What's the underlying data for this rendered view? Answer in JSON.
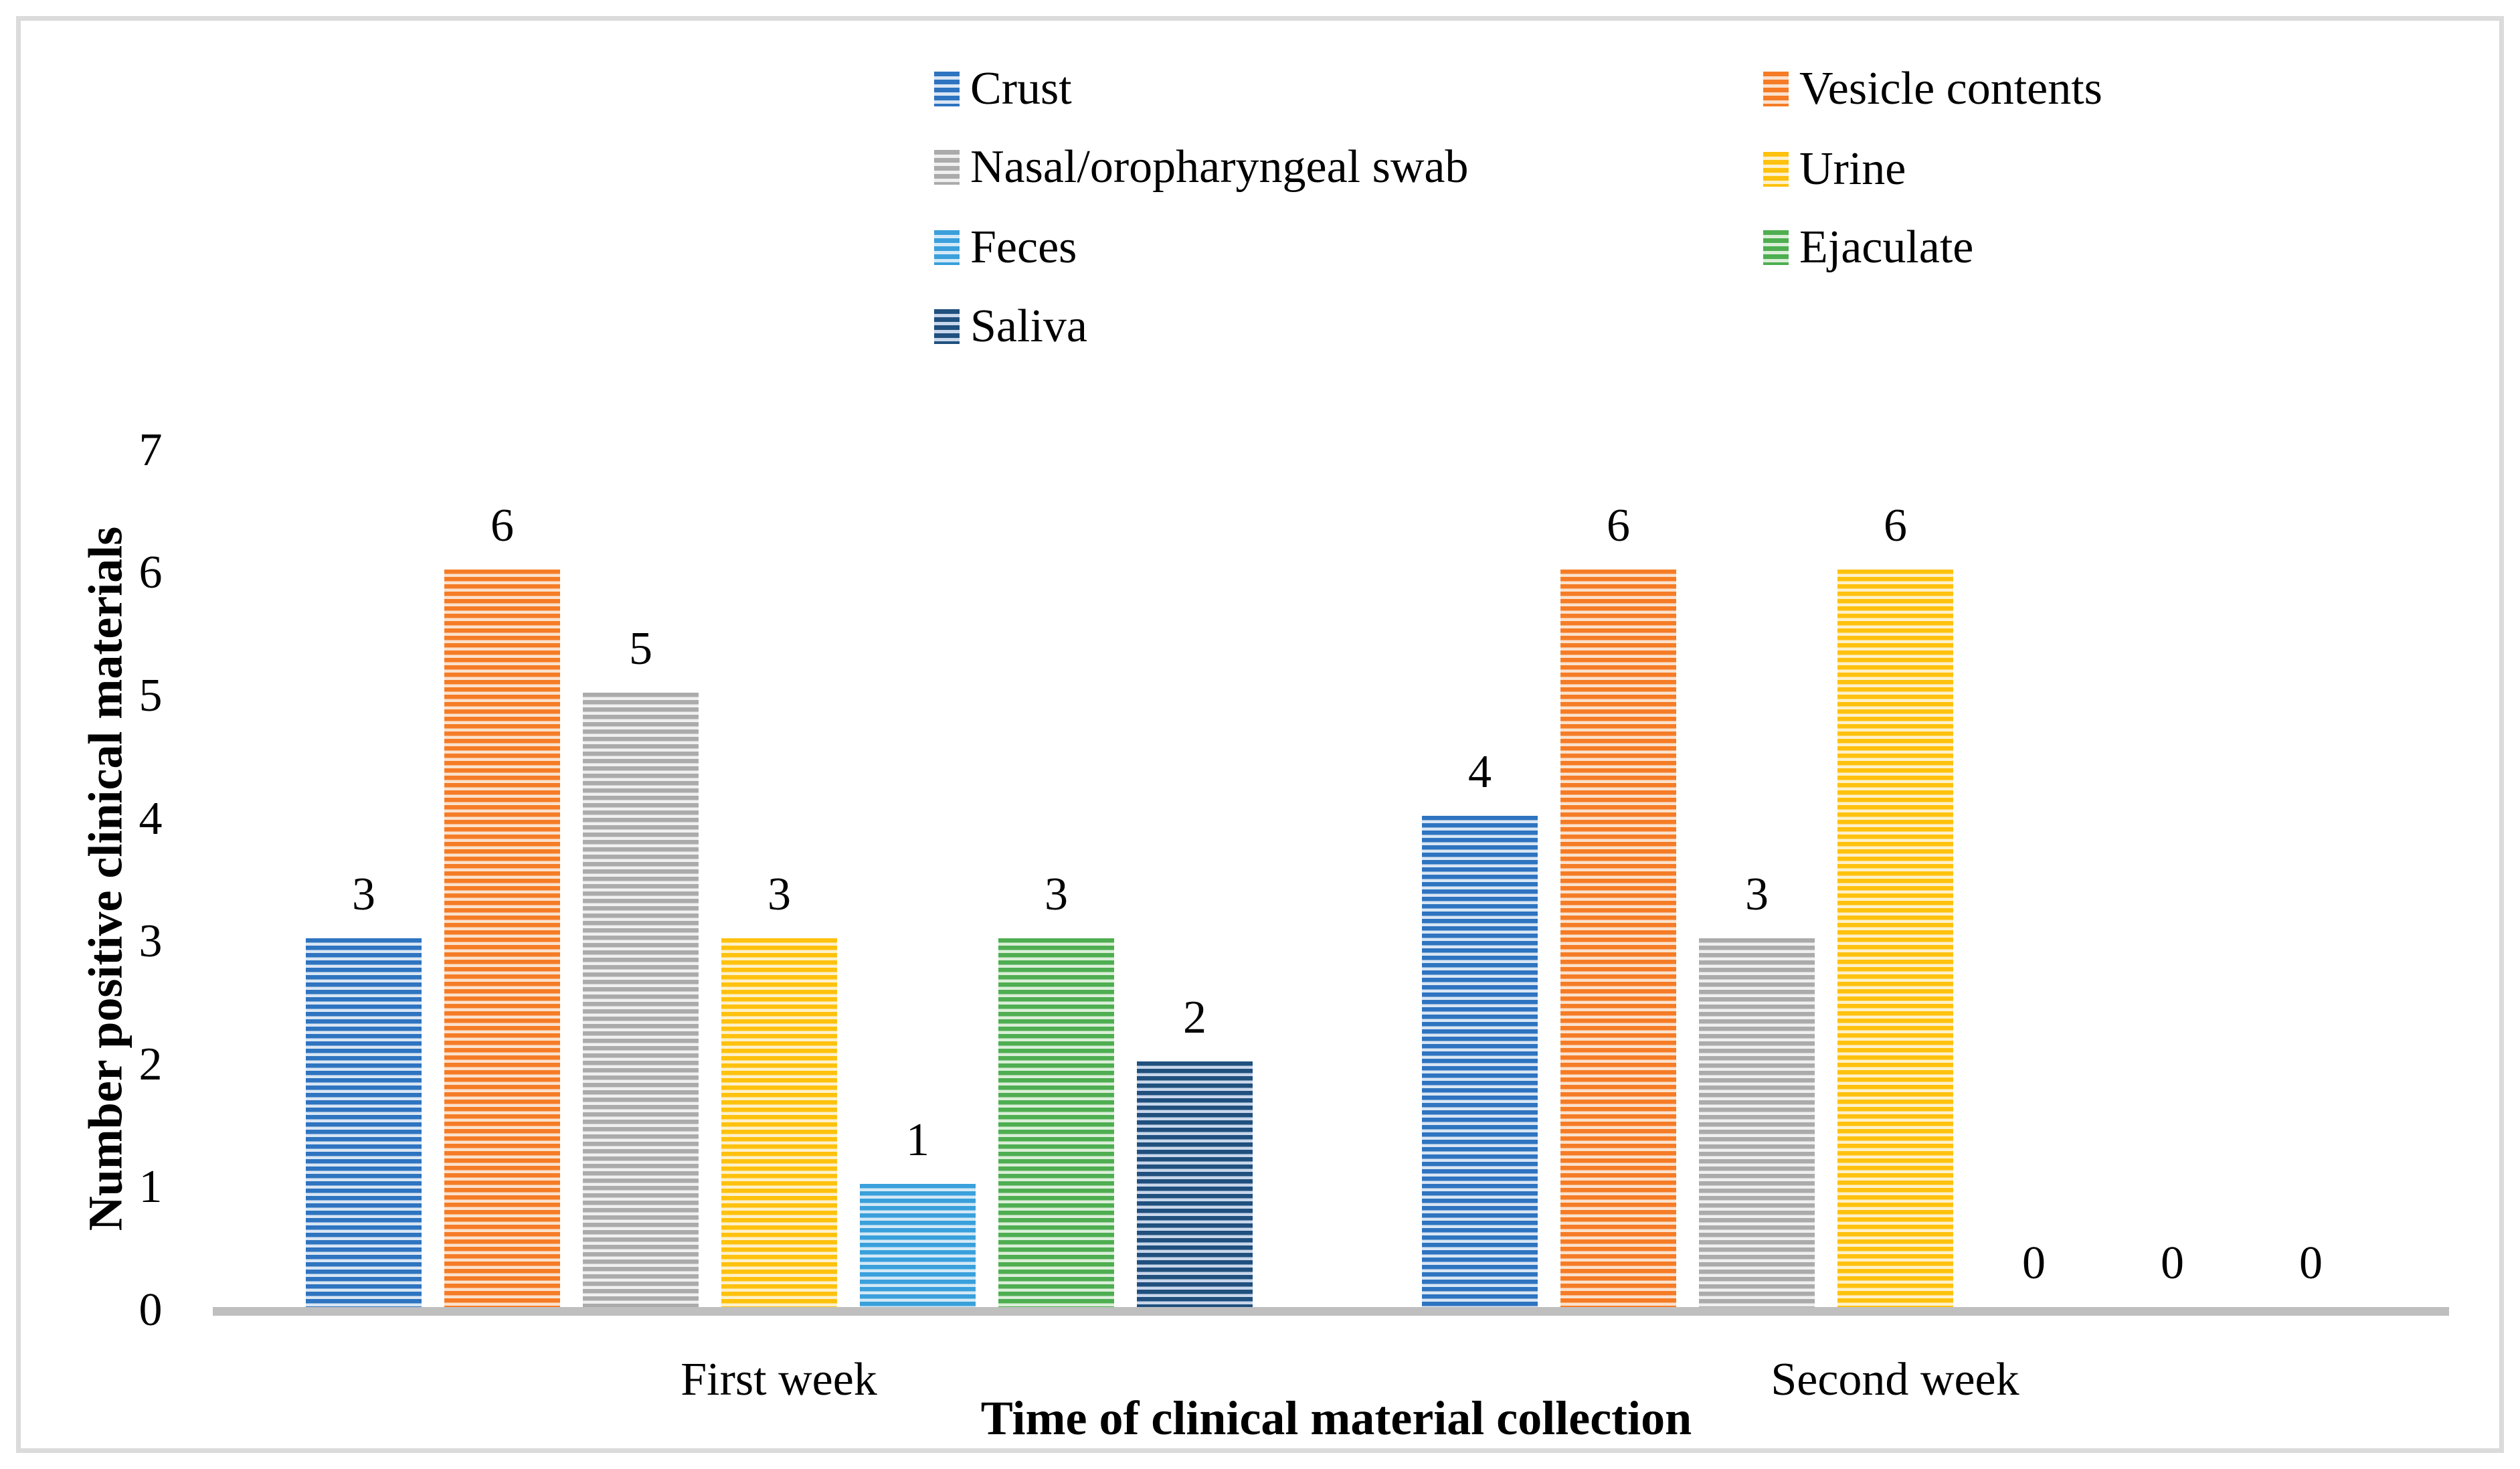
{
  "figure": {
    "background": "#FFFFFF",
    "border_color": "#DBDBDB",
    "axis_line_color": "#BFBFBF",
    "text_color": "#000000"
  },
  "chart_data": {
    "type": "bar",
    "title": "",
    "xlabel": "Time of clinical material collection",
    "ylabel": "Number positive clinical materials",
    "categories": [
      "First week",
      "Second week"
    ],
    "series": [
      {
        "name": "Crust",
        "values": [
          3,
          4
        ],
        "color": "#2E74C0",
        "light": "#D9E6F4"
      },
      {
        "name": "Vesicle contents",
        "values": [
          6,
          6
        ],
        "color": "#F57C26",
        "light": "#FBE2CD"
      },
      {
        "name": "Nasal/oropharyngeal swab",
        "values": [
          5,
          3
        ],
        "color": "#ABABAB",
        "light": "#F0F0F0"
      },
      {
        "name": "Urine",
        "values": [
          3,
          6
        ],
        "color": "#FEC10D",
        "light": "#FEF2CC"
      },
      {
        "name": "Feces",
        "values": [
          1,
          0
        ],
        "color": "#3AA0DB",
        "light": "#D3E9F7"
      },
      {
        "name": "Ejaculate",
        "values": [
          3,
          0
        ],
        "color": "#4EAE51",
        "light": "#DBEFD8"
      },
      {
        "name": "Saliva",
        "values": [
          2,
          0
        ],
        "color": "#20507E",
        "light": "#C9D7EB"
      }
    ],
    "ylim": [
      0,
      7
    ],
    "yticks": [
      0,
      1,
      2,
      3,
      4,
      5,
      6,
      7
    ],
    "grid": false,
    "legend_position": "top-two-columns",
    "bar_pattern": "horizontal-stripes"
  }
}
